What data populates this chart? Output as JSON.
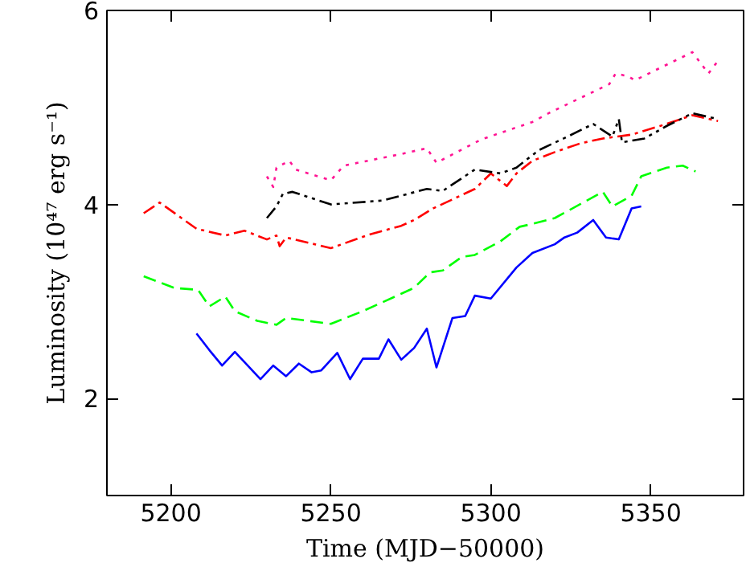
{
  "chart_data": {
    "type": "line",
    "xlabel": "Time (MJD−50000)",
    "ylabel": "Luminosity (10⁴⁷ erg s⁻¹)",
    "xlim": [
      5180,
      5379
    ],
    "ylim": [
      1,
      6
    ],
    "xticks": [
      5200,
      5250,
      5300,
      5350
    ],
    "yticks": [
      2,
      4,
      6
    ],
    "grid": false,
    "series": [
      {
        "color": "#0000ff",
        "line_style": "solid",
        "x": [
          5208,
          5212,
          5216,
          5220,
          5228,
          5232,
          5236,
          5240,
          5244,
          5247,
          5252,
          5256,
          5260,
          5265,
          5268,
          5272,
          5276,
          5280,
          5283,
          5288,
          5292,
          5295,
          5300,
          5308,
          5313,
          5320,
          5323,
          5327,
          5332,
          5336,
          5340,
          5344,
          5347
        ],
        "values": [
          2.67,
          2.5,
          2.34,
          2.48,
          2.2,
          2.34,
          2.23,
          2.36,
          2.27,
          2.29,
          2.47,
          2.2,
          2.41,
          2.41,
          2.61,
          2.4,
          2.52,
          2.72,
          2.32,
          2.83,
          2.85,
          3.06,
          3.03,
          3.35,
          3.5,
          3.59,
          3.66,
          3.71,
          3.84,
          3.66,
          3.64,
          3.96,
          3.98
        ]
      },
      {
        "color": "#00ff00",
        "line_style": "dashed",
        "x": [
          5191.5,
          5201,
          5208.5,
          5212,
          5217,
          5220,
          5227,
          5233,
          5236,
          5250,
          5260,
          5272,
          5276,
          5281,
          5285,
          5291,
          5295,
          5303,
          5309,
          5313,
          5320,
          5335,
          5338,
          5344,
          5347,
          5355,
          5360,
          5364
        ],
        "values": [
          3.26,
          3.14,
          3.12,
          2.95,
          3.05,
          2.9,
          2.8,
          2.76,
          2.83,
          2.77,
          2.9,
          3.08,
          3.14,
          3.3,
          3.32,
          3.46,
          3.48,
          3.62,
          3.77,
          3.8,
          3.86,
          4.13,
          3.98,
          4.09,
          4.29,
          4.38,
          4.4,
          4.34
        ]
      },
      {
        "color": "#ff0000",
        "line_style": "dashdot",
        "x": [
          5191.5,
          5196.5,
          5208,
          5217,
          5223,
          5230,
          5233,
          5234,
          5236,
          5250,
          5262,
          5272,
          5276,
          5282,
          5295,
          5300,
          5305,
          5308,
          5313,
          5320,
          5328,
          5335,
          5344,
          5353,
          5363,
          5371
        ],
        "values": [
          3.91,
          4.02,
          3.75,
          3.68,
          3.73,
          3.64,
          3.68,
          3.57,
          3.66,
          3.55,
          3.69,
          3.78,
          3.84,
          3.96,
          4.16,
          4.32,
          4.19,
          4.32,
          4.45,
          4.54,
          4.63,
          4.68,
          4.72,
          4.81,
          4.92,
          4.86
        ]
      },
      {
        "color": "#000000",
        "line_style": "dashdotdot",
        "x": [
          5230,
          5233,
          5235,
          5238,
          5250,
          5266,
          5280,
          5285,
          5295,
          5303,
          5308,
          5315,
          5324,
          5332,
          5338,
          5340,
          5341,
          5348,
          5355,
          5363,
          5371
        ],
        "values": [
          3.86,
          3.98,
          4.11,
          4.13,
          4.0,
          4.04,
          4.16,
          4.14,
          4.36,
          4.32,
          4.38,
          4.56,
          4.7,
          4.83,
          4.7,
          4.88,
          4.64,
          4.68,
          4.81,
          4.94,
          4.88
        ]
      },
      {
        "color": "#ff1493",
        "line_style": "dotted",
        "x": [
          5230,
          5232,
          5233,
          5237,
          5239,
          5250,
          5254,
          5272,
          5280,
          5283,
          5297,
          5313,
          5318,
          5337,
          5339,
          5343,
          5345,
          5363,
          5368,
          5371
        ],
        "values": [
          4.29,
          4.18,
          4.38,
          4.45,
          4.36,
          4.25,
          4.4,
          4.52,
          4.58,
          4.43,
          4.67,
          4.85,
          4.94,
          5.24,
          5.35,
          5.32,
          5.28,
          5.57,
          5.35,
          5.48
        ]
      }
    ]
  }
}
